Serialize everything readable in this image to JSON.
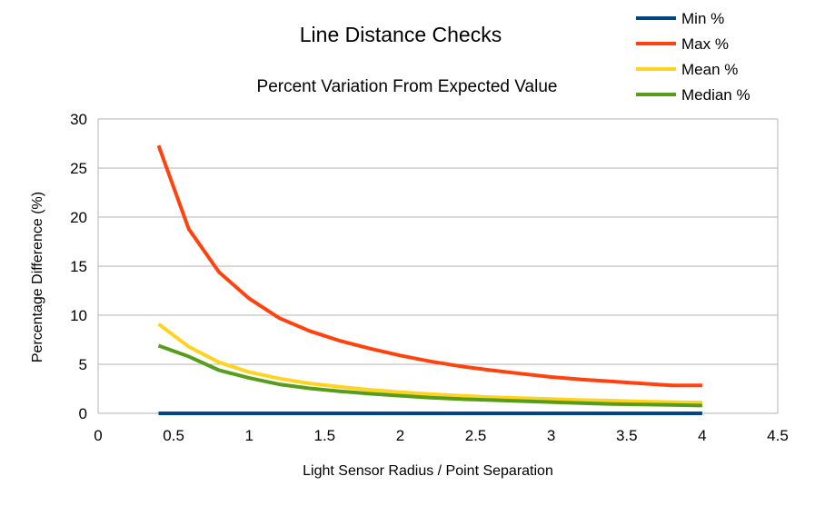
{
  "chart_data": {
    "type": "line",
    "title": "Line Distance Checks",
    "subtitle": "Percent Variation From Expected Value",
    "xlabel": "Light Sensor Radius / Point Separation",
    "ylabel": "Percentage Difference (%)",
    "xlim": [
      0,
      4.5
    ],
    "ylim": [
      0,
      30
    ],
    "x_ticks": [
      "0",
      "0.5",
      "1",
      "1.5",
      "2",
      "2.5",
      "3",
      "3.5",
      "4",
      "4.5"
    ],
    "y_ticks": [
      "0",
      "5",
      "10",
      "15",
      "20",
      "25",
      "30"
    ],
    "grid": "horizontal",
    "legend_position": "top-right",
    "x": [
      0.4,
      0.6,
      0.8,
      1.0,
      1.2,
      1.4,
      1.6,
      1.8,
      2.0,
      2.2,
      2.4,
      2.6,
      2.8,
      3.0,
      3.2,
      3.4,
      3.6,
      3.8,
      4.0
    ],
    "series": [
      {
        "name": "Min %",
        "color": "#004586",
        "values": [
          0,
          0,
          0,
          0,
          0,
          0,
          0,
          0,
          0,
          0,
          0,
          0,
          0,
          0,
          0,
          0,
          0,
          0,
          0
        ]
      },
      {
        "name": "Max %",
        "color": "#ff420e",
        "values": [
          27.3,
          18.8,
          14.4,
          11.7,
          9.7,
          8.4,
          7.4,
          6.6,
          5.9,
          5.3,
          4.8,
          4.4,
          4.05,
          3.7,
          3.45,
          3.25,
          3.05,
          2.85,
          2.85
        ]
      },
      {
        "name": "Mean %",
        "color": "#ffd320",
        "values": [
          9.1,
          6.8,
          5.2,
          4.2,
          3.55,
          3.05,
          2.7,
          2.4,
          2.15,
          1.95,
          1.8,
          1.65,
          1.55,
          1.45,
          1.35,
          1.3,
          1.2,
          1.15,
          1.1
        ]
      },
      {
        "name": "Median %",
        "color": "#579d1c",
        "values": [
          6.9,
          5.8,
          4.4,
          3.6,
          2.95,
          2.55,
          2.25,
          2.0,
          1.8,
          1.6,
          1.45,
          1.35,
          1.25,
          1.15,
          1.05,
          0.95,
          0.9,
          0.85,
          0.8
        ]
      }
    ]
  }
}
